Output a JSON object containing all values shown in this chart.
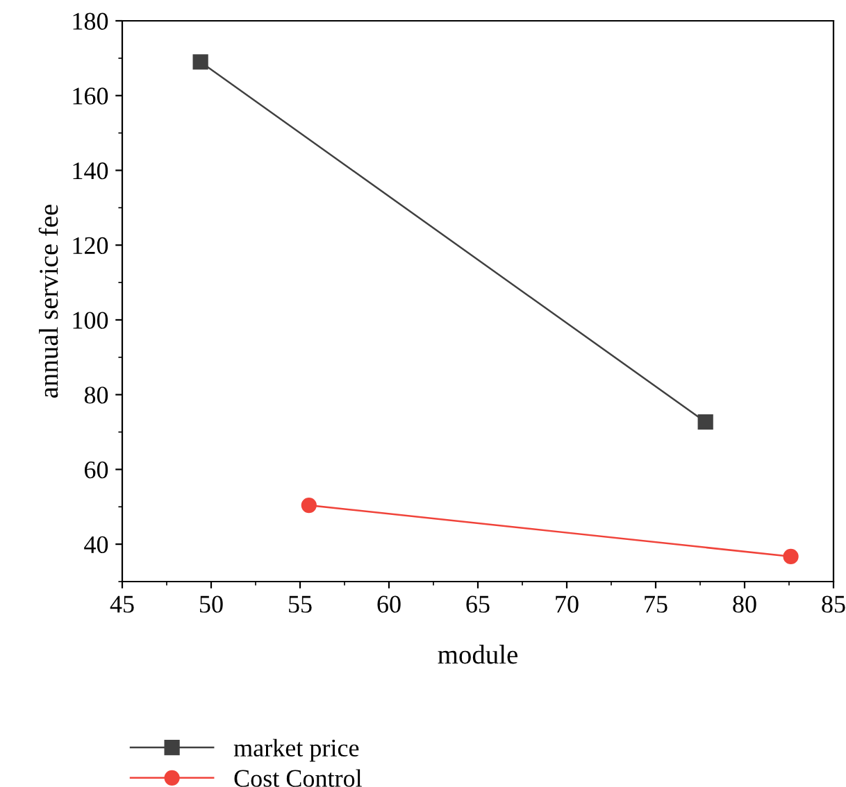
{
  "chart_data": {
    "type": "line",
    "xlabel": "module",
    "ylabel": "annual service fee",
    "xlim": [
      45,
      85
    ],
    "xticks": [
      45,
      50,
      55,
      60,
      65,
      70,
      75,
      80,
      85
    ],
    "ylim": [
      30,
      180
    ],
    "yticks": [
      40,
      60,
      80,
      100,
      120,
      140,
      160,
      180
    ],
    "legend": "bottom",
    "grid": false,
    "line_style": "solid",
    "series": [
      {
        "name": "market price",
        "color": "#404040",
        "marker": "square",
        "x": [
          49.4,
          77.8
        ],
        "values": [
          169,
          72.7
        ]
      },
      {
        "name": "Cost Control",
        "color": "#f0433a",
        "marker": "circle",
        "x": [
          55.5,
          82.6
        ],
        "values": [
          50.4,
          36.7
        ]
      }
    ]
  }
}
